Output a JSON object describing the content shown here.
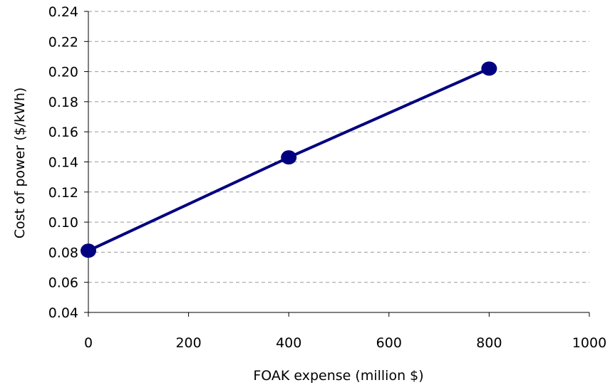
{
  "chart_data": {
    "type": "line",
    "title": "",
    "xlabel": "FOAK expense (million $)",
    "ylabel": "Cost of power ($/kWh)",
    "xlim": [
      0,
      1000
    ],
    "ylim": [
      0.04,
      0.24
    ],
    "x_ticks": [
      0,
      200,
      400,
      600,
      800,
      1000
    ],
    "y_ticks": [
      0.04,
      0.06,
      0.08,
      0.1,
      0.12,
      0.14,
      0.16,
      0.18,
      0.2,
      0.22,
      0.24
    ],
    "x_tick_labels": [
      "0",
      "200",
      "400",
      "600",
      "800",
      "1000"
    ],
    "y_tick_labels": [
      "0.04",
      "0.06",
      "0.08",
      "0.10",
      "0.12",
      "0.14",
      "0.16",
      "0.18",
      "0.20",
      "0.22",
      "0.24"
    ],
    "grid": "horizontal-dashed",
    "legend": "none",
    "series": [
      {
        "x": [
          0,
          400,
          800
        ],
        "y": [
          0.081,
          0.143,
          0.202
        ],
        "color": "#000080",
        "marker": "circle"
      }
    ]
  }
}
